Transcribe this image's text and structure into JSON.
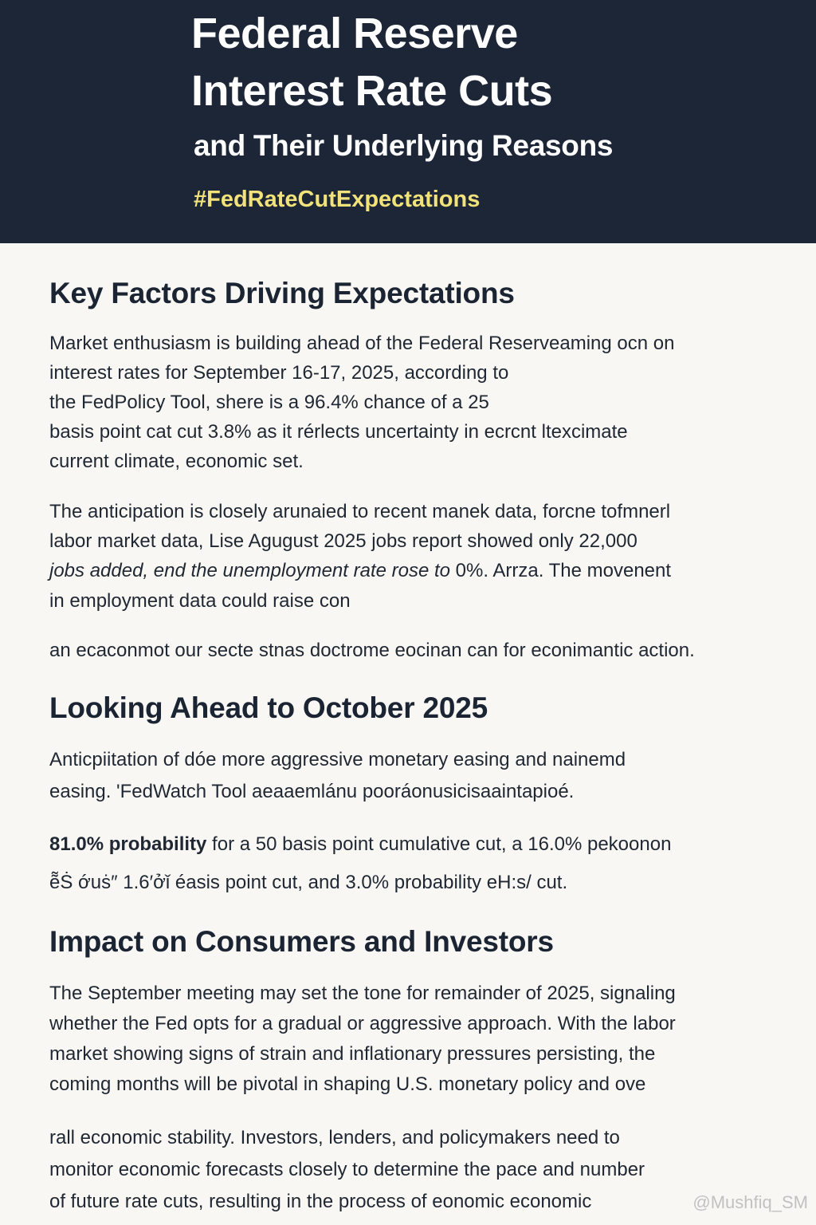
{
  "header": {
    "title_line1": "Federal Reserve",
    "title_line2": "Interest Rate Cuts",
    "subtitle": "and Their Underlying Reasons",
    "hashtag": "#FedRateCutExpectations"
  },
  "section1": {
    "heading": "Key Factors Driving Expectations",
    "p1": [
      "Market enthusiasm is building ahead of the Federal Reserveaming ocn on",
      "interest rates for September 16-17, 2025, according to",
      "the FedPolicy Tool, shere is a 96.4% chance of a 25",
      "basis point cat cut 3.8% as it rérlects uncertainty in ecrcnt ltexcimate",
      "current climate, economic set."
    ],
    "p2": {
      "line1": "The anticipation is closely arunaied to recent manek data, forcne tofmnerl",
      "line2": "labor market data, Lise Agugust 2025 jobs report showed only 22,000",
      "line3_italic": "jobs added, end the unemployment rate rose to",
      "line3_rest": " 0%. Arrza. The movenent",
      "line4": "in employment data could raise con"
    },
    "p3": "an ecaconmot our secte stnas doctrome eocinan can for econimantic action."
  },
  "section2": {
    "heading": "Looking Ahead to October 2025",
    "p1": [
      "Anticpiitation of dóe more aggressive monetary easing and nainemd",
      "easing. 'FedWatch Tool aeaaemlánu pooráonusicisaaintapioé."
    ],
    "p2_bold": "81.0% probability",
    "p2_rest": " for a 50 basis point cumulative cut, a 16.0% pekoonon",
    "p3": "ẽ̃Ṡ ớuṡ″  1.6′ởǐ éasis point cut, and 3.0% probability eH:s/ cut."
  },
  "section3": {
    "heading": "Impact on Consumers and Investors",
    "p1": [
      "The September meeting may set the tone for remainder of 2025, signaling",
      "whether the Fed opts for a gradual or aggressive approach. With the labor",
      "market showing signs of strain and inflationary pressures persisting, the",
      "coming months will be pivotal in shaping U.S. monetary policy and ove"
    ],
    "p2": [
      "rall economic stability. Investors, lenders, and policymakers need to",
      "monitor economic forecasts closely to determine the pace and number",
      "of future rate cuts, resulting in the process of eonomic economic"
    ]
  },
  "watermark": "@Mushfiq_SM"
}
